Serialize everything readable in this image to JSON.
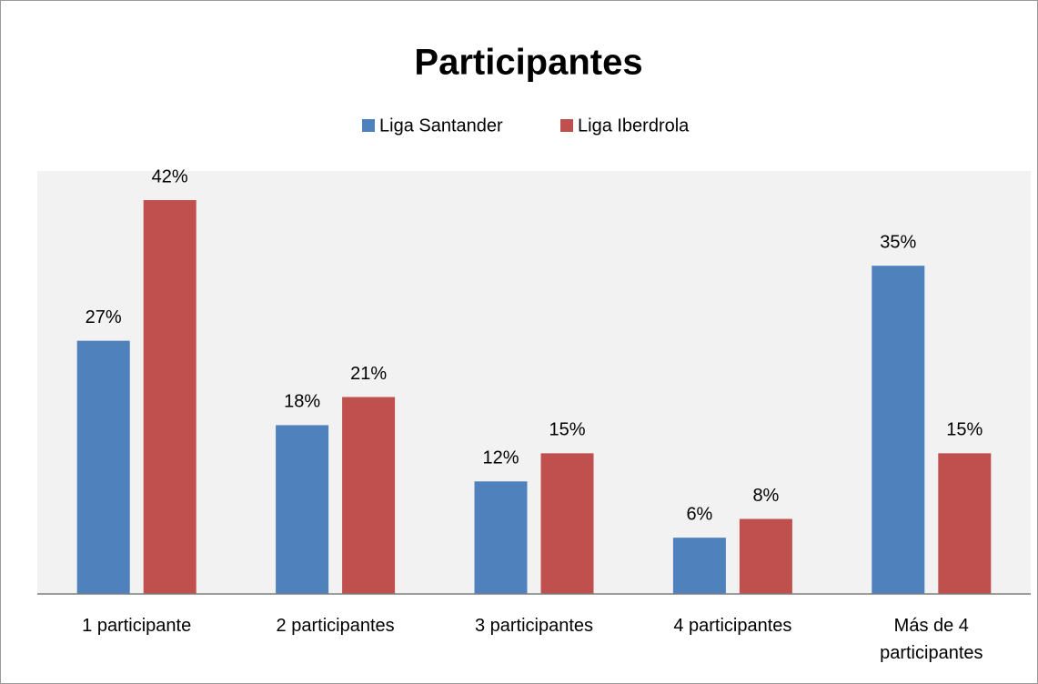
{
  "chart_data": {
    "type": "bar",
    "title": "Participantes",
    "categories": [
      "1 participante",
      "2 participantes",
      "3 participantes",
      "4 participantes",
      "Más de 4 participantes"
    ],
    "series": [
      {
        "name": "Liga Santander",
        "color": "#4f81bd",
        "values": [
          27,
          18,
          12,
          6,
          35
        ],
        "value_labels": [
          "27%",
          "18%",
          "12%",
          "6%",
          "35%"
        ]
      },
      {
        "name": "Liga Iberdrola",
        "color": "#c0504d",
        "values": [
          42,
          21,
          15,
          8,
          15
        ],
        "value_labels": [
          "42%",
          "21%",
          "15%",
          "8%",
          "15%"
        ]
      }
    ],
    "legend": "top"
  }
}
